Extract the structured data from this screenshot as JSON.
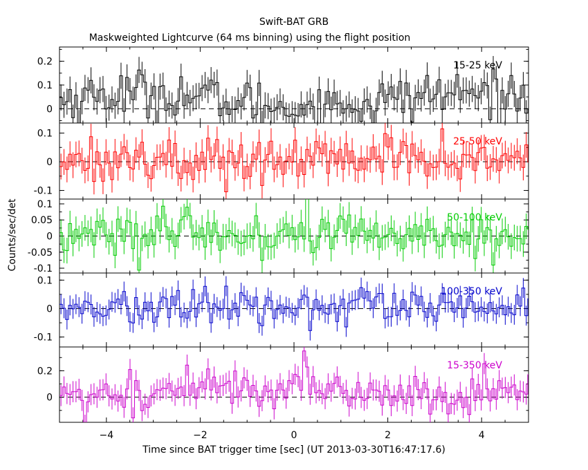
{
  "title": "Swift-BAT GRB",
  "subtitle": "Maskweighted Lightcurve (64 ms binning) using the flight position",
  "chart_data": {
    "type": "line",
    "style": "step with error bars",
    "xlabel": "Time since BAT trigger time [sec] (UT 2013-03-30T16:47:17.6)",
    "ylabel": "Counts/sec/det",
    "xlim": [
      -5.0,
      5.0
    ],
    "x_ticks": [
      -4,
      -2,
      0,
      2,
      4
    ],
    "bin_width_s": 0.064,
    "grid": false,
    "zero_line": "dashed",
    "panels": [
      {
        "name": "15-25 keV",
        "color": "#000000",
        "ylim": [
          -0.06,
          0.26
        ],
        "yticks": [
          0,
          0.1,
          0.2
        ],
        "ytick_labels": [
          "0",
          "0.1",
          "0.2"
        ],
        "sigma": 0.055,
        "level": 0.065,
        "scatter": 0.05
      },
      {
        "name": "25-50 keV",
        "color": "#ff0000",
        "ylim": [
          -0.13,
          0.135
        ],
        "yticks": [
          -0.1,
          0,
          0.1
        ],
        "ytick_labels": [
          "-0.1",
          "0",
          "0.1"
        ],
        "sigma": 0.045,
        "level": 0.012,
        "scatter": 0.04
      },
      {
        "name": "50-100 keV",
        "color": "#00cc00",
        "ylim": [
          -0.115,
          0.115
        ],
        "yticks": [
          -0.1,
          -0.05,
          0,
          0.05,
          0.1
        ],
        "ytick_labels": [
          "-0.1",
          "-0.05",
          "0",
          "0.05",
          "0.1"
        ],
        "sigma": 0.04,
        "level": 0.008,
        "scatter": 0.035
      },
      {
        "name": "100-350 keV",
        "color": "#0000cc",
        "ylim": [
          -0.135,
          0.125
        ],
        "yticks": [
          -0.1,
          0,
          0.1
        ],
        "ytick_labels": [
          "-0.1",
          "0",
          "0.1"
        ],
        "sigma": 0.035,
        "level": 0.005,
        "scatter": 0.032
      },
      {
        "name": "15-350 keV",
        "color": "#cc00cc",
        "ylim": [
          -0.19,
          0.38
        ],
        "yticks": [
          0,
          0.2
        ],
        "ytick_labels": [
          "0",
          "0.2"
        ],
        "sigma": 0.08,
        "level": 0.09,
        "scatter": 0.08
      }
    ]
  }
}
